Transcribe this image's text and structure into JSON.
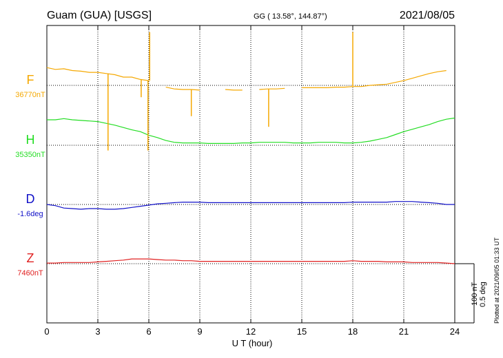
{
  "header": {
    "station": "Guam (GUA)  [USGS]",
    "coords": "GG ( 13.58°, 144.87°)",
    "date": "2021/08/05"
  },
  "plotted_note": "Plotted at 2021/09/05 01:33 UT",
  "scale": {
    "nt": "100 nT",
    "deg": "0.5 deg"
  },
  "chart_data": {
    "type": "line",
    "title": "Guam (GUA)  [USGS]",
    "xlabel": "U T (hour)",
    "ylabel": "",
    "xlim": [
      0,
      24
    ],
    "xticks": [
      0,
      3,
      6,
      9,
      12,
      15,
      18,
      21,
      24
    ],
    "grid": true,
    "series": [
      {
        "name": "F",
        "value_label": "36770nT",
        "baseline": 36770,
        "unit": "nT",
        "color": "#f5a800",
        "x": [
          0.0,
          0.5,
          1.0,
          1.5,
          2.0,
          2.5,
          3.0,
          3.5,
          4.0,
          4.5,
          5.0,
          5.5,
          6.0,
          6.5,
          7.0,
          7.5,
          8.0,
          8.5,
          9.0,
          9.5,
          10.0,
          10.5,
          11.0,
          11.5,
          12.0,
          12.5,
          13.0,
          13.5,
          14.0,
          14.5,
          15.0,
          15.5,
          16.0,
          16.5,
          17.0,
          17.5,
          18.0,
          18.5,
          19.0,
          19.5,
          20.0,
          20.5,
          21.0,
          21.5,
          22.0,
          22.5,
          23.0,
          23.5
        ],
        "values": [
          36800,
          36797,
          36798,
          36795,
          36794,
          36792,
          36792,
          36790,
          36788,
          36784,
          36784,
          36780,
          36778,
          36768,
          36767,
          36764,
          36763,
          36763,
          36762,
          36762,
          36762,
          36763,
          36762,
          36762,
          36763,
          36763,
          36764,
          36764,
          36765,
          36765,
          36766,
          36766,
          36766,
          36766,
          36767,
          36767,
          36768,
          36768,
          36770,
          36771,
          36772,
          36775,
          36778,
          36782,
          36786,
          36790,
          36793,
          36795
        ],
        "gaps_at": [
          6.5,
          9.5,
          10.0,
          12.0,
          14.5
        ]
      },
      {
        "name": "H",
        "value_label": "35350nT",
        "baseline": 35350,
        "unit": "nT",
        "color": "#22dd22",
        "x": [
          0.0,
          0.5,
          1.0,
          1.5,
          2.0,
          2.5,
          3.0,
          3.5,
          4.0,
          4.5,
          5.0,
          5.5,
          6.0,
          6.5,
          7.0,
          7.5,
          8.0,
          8.5,
          9.0,
          9.5,
          10.0,
          10.5,
          11.0,
          11.5,
          12.0,
          12.5,
          13.0,
          13.5,
          14.0,
          14.5,
          15.0,
          15.5,
          16.0,
          16.5,
          17.0,
          17.5,
          18.0,
          18.5,
          19.0,
          19.5,
          20.0,
          20.5,
          21.0,
          21.5,
          22.0,
          22.5,
          23.0,
          23.5,
          24.0
        ],
        "values": [
          35393,
          35393,
          35395,
          35393,
          35392,
          35391,
          35390,
          35387,
          35384,
          35380,
          35376,
          35373,
          35367,
          35363,
          35358,
          35355,
          35354,
          35354,
          35354,
          35353,
          35353,
          35353,
          35353,
          35354,
          35354,
          35355,
          35355,
          35355,
          35355,
          35354,
          35354,
          35354,
          35355,
          35355,
          35355,
          35354,
          35354,
          35355,
          35357,
          35360,
          35363,
          35368,
          35373,
          35377,
          35381,
          35385,
          35390,
          35394,
          35396
        ]
      },
      {
        "name": "D",
        "value_label": "-1.6deg",
        "baseline": -1.6,
        "unit": "deg",
        "color": "#1010c8",
        "x": [
          0.0,
          0.5,
          1.0,
          1.5,
          2.0,
          2.5,
          3.0,
          3.5,
          4.0,
          4.5,
          5.0,
          5.5,
          6.0,
          6.5,
          7.0,
          7.5,
          8.0,
          8.5,
          9.0,
          9.5,
          10.0,
          10.5,
          11.0,
          11.5,
          12.0,
          12.5,
          13.0,
          13.5,
          14.0,
          14.5,
          15.0,
          15.5,
          16.0,
          16.5,
          17.0,
          17.5,
          18.0,
          18.5,
          19.0,
          19.5,
          20.0,
          20.5,
          21.0,
          21.5,
          22.0,
          22.5,
          23.0,
          23.5,
          24.0
        ],
        "values": [
          -1.6,
          -1.61,
          -1.63,
          -1.635,
          -1.64,
          -1.635,
          -1.635,
          -1.64,
          -1.64,
          -1.635,
          -1.625,
          -1.615,
          -1.605,
          -1.595,
          -1.59,
          -1.585,
          -1.58,
          -1.58,
          -1.58,
          -1.585,
          -1.585,
          -1.585,
          -1.585,
          -1.585,
          -1.585,
          -1.585,
          -1.585,
          -1.585,
          -1.585,
          -1.585,
          -1.585,
          -1.585,
          -1.585,
          -1.585,
          -1.585,
          -1.585,
          -1.58,
          -1.58,
          -1.58,
          -1.58,
          -1.58,
          -1.575,
          -1.575,
          -1.575,
          -1.58,
          -1.585,
          -1.59,
          -1.6,
          -1.6
        ]
      },
      {
        "name": "Z",
        "value_label": "7460nT",
        "baseline": 7460,
        "unit": "nT",
        "color": "#e02020",
        "x": [
          0.0,
          0.5,
          1.0,
          1.5,
          2.0,
          2.5,
          3.0,
          3.5,
          4.0,
          4.5,
          5.0,
          5.5,
          6.0,
          6.5,
          7.0,
          7.5,
          8.0,
          8.5,
          9.0,
          9.5,
          10.0,
          10.5,
          11.0,
          11.5,
          12.0,
          12.5,
          13.0,
          13.5,
          14.0,
          14.5,
          15.0,
          15.5,
          16.0,
          16.5,
          17.0,
          17.5,
          18.0,
          18.5,
          19.0,
          19.5,
          20.0,
          20.5,
          21.0,
          21.5,
          22.0,
          22.5,
          23.0,
          23.5,
          24.0
        ],
        "values": [
          7461,
          7461,
          7462,
          7462,
          7462,
          7462,
          7463,
          7464,
          7465,
          7466,
          7468,
          7468,
          7468,
          7467,
          7466,
          7466,
          7465,
          7465,
          7464,
          7464,
          7464,
          7464,
          7464,
          7464,
          7464,
          7464,
          7464,
          7464,
          7464,
          7464,
          7464,
          7464,
          7464,
          7464,
          7464,
          7464,
          7465,
          7464,
          7464,
          7464,
          7463,
          7463,
          7463,
          7462,
          7462,
          7462,
          7462,
          7461,
          7460
        ]
      }
    ],
    "spikes": [
      {
        "series": "F",
        "x": 3.6,
        "value": 36660
      },
      {
        "series": "F",
        "x": 5.55,
        "value": 36750
      },
      {
        "series": "F",
        "x": 5.95,
        "value": 36660
      },
      {
        "series": "F",
        "x": 6.05,
        "value": 36860
      },
      {
        "series": "F",
        "x": 8.5,
        "value": 36718
      },
      {
        "series": "F",
        "x": 13.05,
        "value": 36700
      },
      {
        "series": "F",
        "x": 18.0,
        "value": 36860
      }
    ]
  }
}
